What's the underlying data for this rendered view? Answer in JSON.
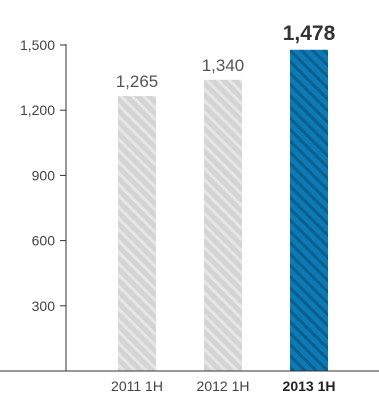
{
  "chart_data": {
    "type": "bar",
    "title": "",
    "xlabel": "",
    "ylabel": "",
    "categories": [
      "2011 1H",
      "2012 1H",
      "2013 1H"
    ],
    "values": [
      1265,
      1340,
      1478
    ],
    "value_labels": [
      "1,265",
      "1,340",
      "1,478"
    ],
    "highlight_index": 2,
    "ylim": [
      0,
      1500
    ],
    "yticks": [
      300,
      600,
      900,
      1200,
      1500
    ],
    "ytick_labels": [
      "300",
      "600",
      "900",
      "1,200",
      "1,500"
    ],
    "grid": false,
    "legend": "none",
    "colors": {
      "highlight": "#0d7ab5",
      "highlight_dark": "#0a5f8e",
      "muted": "#d4d4d4",
      "muted_stripe": "#e8e8e8",
      "axis": "#333333"
    }
  }
}
